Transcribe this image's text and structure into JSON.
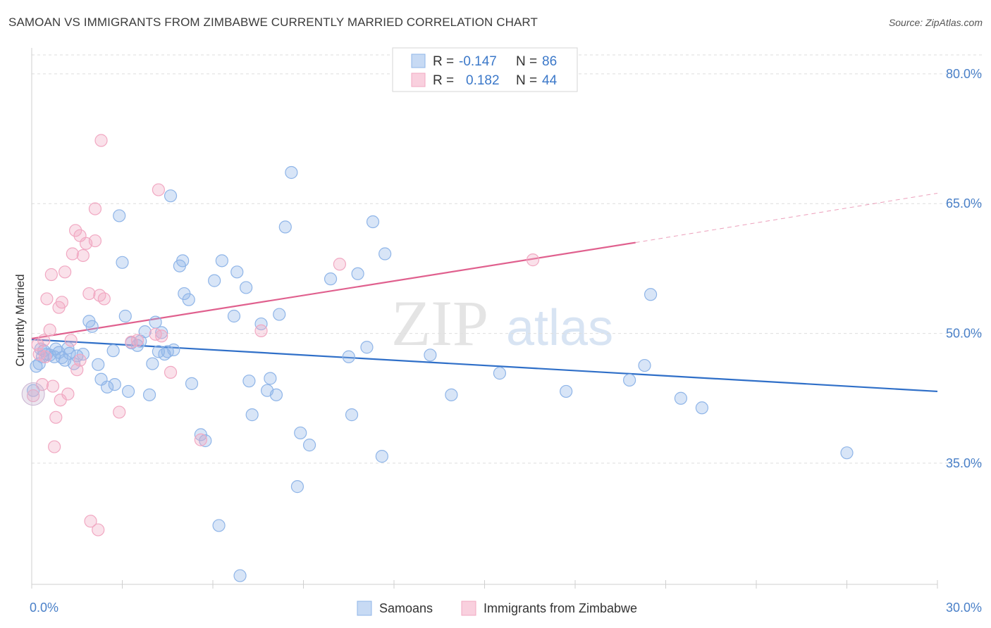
{
  "title": "SAMOAN VS IMMIGRANTS FROM ZIMBABWE CURRENTLY MARRIED CORRELATION CHART",
  "source": "Source: ZipAtlas.com",
  "watermark": {
    "zip": "ZIP",
    "atlas": "atlas"
  },
  "legend": {
    "r_label": "R =",
    "n_label": "N =",
    "rows": [
      {
        "r": "-0.147",
        "n": "86",
        "color": "#8fb5e8"
      },
      {
        "r": "0.182",
        "n": "44",
        "color": "#f1a8c2"
      }
    ]
  },
  "chart_data": {
    "type": "scatter",
    "title": "SAMOAN VS IMMIGRANTS FROM ZIMBABWE CURRENTLY MARRIED CORRELATION CHART",
    "xlabel": "",
    "ylabel": "Currently Married",
    "xlim": [
      0,
      30
    ],
    "ylim": [
      21,
      83
    ],
    "x_tick_labels": [
      "0.0%",
      "30.0%"
    ],
    "y_ticks": [
      35,
      50,
      65,
      80
    ],
    "y_tick_labels": [
      "35.0%",
      "50.0%",
      "65.0%",
      "80.0%"
    ],
    "grid": true,
    "legend_position": "top-center",
    "series": [
      {
        "name": "Samoans",
        "color": "#8fb5e8",
        "line_color": "#2f6fc8",
        "trend": {
          "x0": 0,
          "y0": 49.3,
          "x1": 30,
          "y1": 43.3
        },
        "points": [
          [
            0.05,
            43.4
          ],
          [
            0.25,
            46.5
          ],
          [
            0.3,
            48.2
          ],
          [
            0.35,
            47.3
          ],
          [
            0.4,
            48.0
          ],
          [
            0.5,
            47.6
          ],
          [
            0.6,
            47.5
          ],
          [
            0.75,
            47.3
          ],
          [
            0.8,
            48.2
          ],
          [
            0.9,
            47.8
          ],
          [
            1.0,
            47.2
          ],
          [
            1.1,
            46.9
          ],
          [
            1.2,
            48.3
          ],
          [
            1.25,
            47.7
          ],
          [
            1.4,
            46.5
          ],
          [
            1.5,
            47.4
          ],
          [
            1.7,
            47.6
          ],
          [
            1.9,
            51.4
          ],
          [
            2.0,
            50.8
          ],
          [
            2.2,
            46.4
          ],
          [
            2.3,
            44.7
          ],
          [
            2.5,
            43.8
          ],
          [
            2.7,
            48.0
          ],
          [
            2.75,
            44.1
          ],
          [
            2.9,
            63.6
          ],
          [
            3.0,
            58.2
          ],
          [
            3.1,
            52.0
          ],
          [
            3.2,
            43.3
          ],
          [
            3.3,
            48.9
          ],
          [
            3.5,
            48.6
          ],
          [
            3.6,
            49.1
          ],
          [
            3.75,
            50.2
          ],
          [
            3.9,
            42.9
          ],
          [
            4.0,
            46.5
          ],
          [
            4.1,
            51.3
          ],
          [
            4.2,
            47.9
          ],
          [
            4.3,
            50.1
          ],
          [
            4.4,
            47.6
          ],
          [
            4.5,
            47.9
          ],
          [
            4.6,
            65.9
          ],
          [
            4.7,
            48.1
          ],
          [
            4.9,
            57.8
          ],
          [
            5.0,
            58.4
          ],
          [
            5.05,
            54.6
          ],
          [
            5.2,
            53.9
          ],
          [
            5.3,
            44.2
          ],
          [
            5.6,
            38.3
          ],
          [
            5.75,
            37.6
          ],
          [
            6.05,
            56.1
          ],
          [
            6.2,
            27.8
          ],
          [
            6.3,
            58.4
          ],
          [
            6.7,
            52.0
          ],
          [
            6.8,
            57.1
          ],
          [
            6.9,
            22.0
          ],
          [
            7.1,
            55.3
          ],
          [
            7.2,
            44.5
          ],
          [
            7.3,
            40.6
          ],
          [
            7.6,
            51.1
          ],
          [
            7.8,
            43.4
          ],
          [
            7.9,
            44.8
          ],
          [
            8.1,
            42.9
          ],
          [
            8.2,
            52.2
          ],
          [
            8.4,
            62.3
          ],
          [
            8.6,
            68.6
          ],
          [
            8.8,
            32.3
          ],
          [
            8.9,
            38.5
          ],
          [
            9.2,
            37.1
          ],
          [
            9.9,
            56.3
          ],
          [
            10.5,
            47.3
          ],
          [
            10.6,
            40.6
          ],
          [
            10.8,
            56.9
          ],
          [
            11.1,
            48.4
          ],
          [
            11.3,
            62.9
          ],
          [
            11.6,
            35.8
          ],
          [
            11.7,
            59.2
          ],
          [
            13.2,
            47.5
          ],
          [
            13.9,
            42.9
          ],
          [
            15.5,
            45.4
          ],
          [
            17.7,
            43.3
          ],
          [
            19.8,
            44.6
          ],
          [
            20.3,
            46.3
          ],
          [
            20.5,
            54.5
          ],
          [
            21.5,
            42.5
          ],
          [
            22.2,
            41.4
          ],
          [
            27.0,
            36.2
          ],
          [
            0.15,
            46.2
          ]
        ]
      },
      {
        "name": "Immigrants from Zimbabwe",
        "color": "#f1a8c2",
        "line_color": "#e0608e",
        "trend": {
          "x0": 0,
          "y0": 49.4,
          "x1": 20,
          "y1": 60.5
        },
        "trend_ext": {
          "x0": 20,
          "y0": 60.5,
          "x1": 30,
          "y1": 66.2
        },
        "points": [
          [
            0.05,
            42.8
          ],
          [
            0.2,
            48.7
          ],
          [
            0.25,
            47.6
          ],
          [
            0.35,
            44.1
          ],
          [
            0.4,
            49.2
          ],
          [
            0.45,
            47.3
          ],
          [
            0.5,
            54.0
          ],
          [
            0.6,
            50.4
          ],
          [
            0.65,
            56.8
          ],
          [
            0.7,
            43.9
          ],
          [
            0.75,
            36.9
          ],
          [
            0.8,
            40.3
          ],
          [
            0.9,
            53.0
          ],
          [
            0.95,
            42.3
          ],
          [
            1.0,
            53.6
          ],
          [
            1.1,
            57.1
          ],
          [
            1.2,
            43.0
          ],
          [
            1.3,
            49.2
          ],
          [
            1.35,
            59.2
          ],
          [
            1.45,
            61.9
          ],
          [
            1.5,
            45.8
          ],
          [
            1.6,
            61.3
          ],
          [
            1.7,
            59.0
          ],
          [
            1.8,
            60.4
          ],
          [
            1.6,
            46.9
          ],
          [
            1.9,
            54.6
          ],
          [
            1.95,
            28.3
          ],
          [
            2.1,
            60.7
          ],
          [
            2.1,
            64.4
          ],
          [
            2.2,
            27.3
          ],
          [
            2.25,
            54.4
          ],
          [
            2.3,
            72.3
          ],
          [
            2.4,
            54.0
          ],
          [
            2.9,
            40.9
          ],
          [
            3.3,
            49.0
          ],
          [
            3.5,
            49.2
          ],
          [
            4.1,
            49.9
          ],
          [
            4.2,
            66.6
          ],
          [
            4.3,
            49.7
          ],
          [
            4.6,
            45.5
          ],
          [
            5.6,
            37.7
          ],
          [
            7.6,
            50.3
          ],
          [
            10.2,
            58.0
          ],
          [
            16.6,
            58.5
          ]
        ]
      }
    ]
  }
}
